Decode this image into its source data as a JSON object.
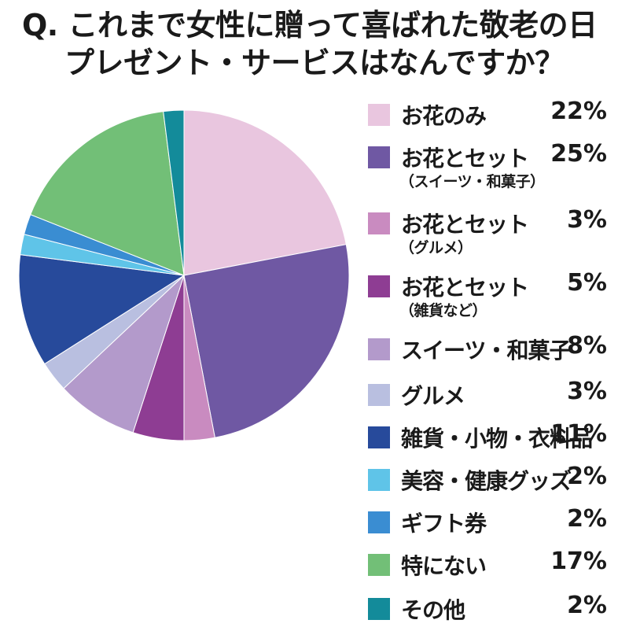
{
  "title": {
    "line1": "Q. これまで女性に贈って喜ばれた敬老の日",
    "line2": "プレゼント・サービスはなんですか？"
  },
  "chart_data": {
    "type": "pie",
    "categories": [
      "お花のみ",
      "お花とセット（スイーツ・和菓子）",
      "お花とセット（グルメ）",
      "お花とセット（雑貨など）",
      "スイーツ・和菓子",
      "グルメ",
      "雑貨・小物・衣料品",
      "美容・健康グッズ",
      "ギフト券",
      "特にない",
      "その他"
    ],
    "values": [
      22,
      25,
      3,
      5,
      8,
      3,
      11,
      2,
      2,
      17,
      2
    ],
    "colors": [
      "#e9c6df",
      "#6f58a3",
      "#c98bc0",
      "#8e3d93",
      "#b39acb",
      "#b9bfe0",
      "#274a9b",
      "#5fc4e8",
      "#3a8dd2",
      "#72bf77",
      "#138b9a"
    ],
    "unit": "%",
    "legend_position": "right",
    "start_angle": "top, clockwise"
  },
  "legend": [
    {
      "label": "お花のみ",
      "sub": "",
      "value": "22%"
    },
    {
      "label": "お花とセット",
      "sub": "（スイーツ・和菓子）",
      "value": "25%"
    },
    {
      "label": "お花とセット",
      "sub": "（グルメ）",
      "value": "3%"
    },
    {
      "label": "お花とセット",
      "sub": "（雑貨など）",
      "value": "5%"
    },
    {
      "label": "スイーツ・和菓子",
      "sub": "",
      "value": "8%"
    },
    {
      "label": "グルメ",
      "sub": "",
      "value": "3%"
    },
    {
      "label": "雑貨・小物・衣料品",
      "sub": "",
      "value": "11%"
    },
    {
      "label": "美容・健康グッズ",
      "sub": "",
      "value": "2%"
    },
    {
      "label": "ギフト券",
      "sub": "",
      "value": "2%"
    },
    {
      "label": "特にない",
      "sub": "",
      "value": "17%"
    },
    {
      "label": "その他",
      "sub": "",
      "value": "2%"
    }
  ]
}
